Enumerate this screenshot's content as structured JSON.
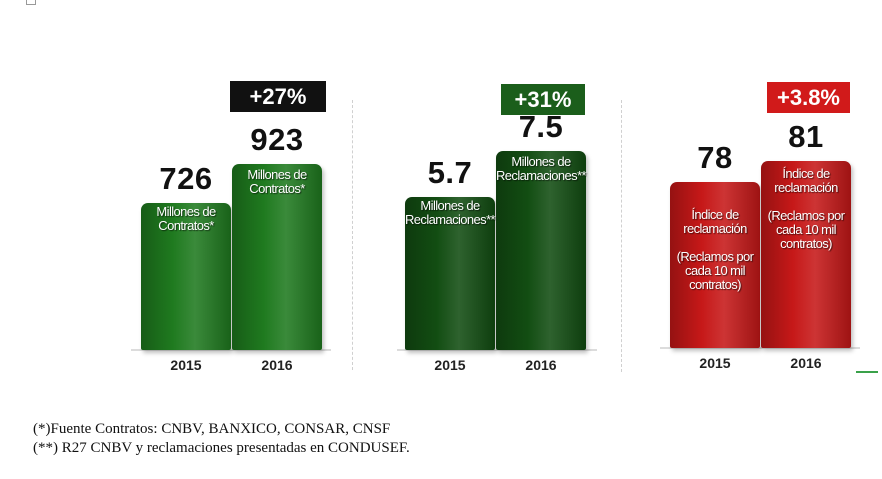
{
  "chart_data": [
    {
      "type": "bar",
      "categories": [
        "2015",
        "2016"
      ],
      "values": [
        726,
        923
      ],
      "value_labels": [
        "726",
        "923"
      ],
      "bar_labels": [
        "Millones de\nContratos*",
        "Millones de\nContratos*"
      ],
      "change": "+27%",
      "colors": {
        "bar": "#1f7a1f",
        "badge": "#111111"
      }
    },
    {
      "type": "bar",
      "categories": [
        "2015",
        "2016"
      ],
      "values": [
        5.7,
        7.5
      ],
      "value_labels": [
        "5.7",
        "7.5"
      ],
      "bar_labels": [
        "Millones de\nReclamaciones**",
        "Millones de\nReclamaciones**"
      ],
      "change": "+31%",
      "colors": {
        "bar": "#124d12",
        "badge": "#1b5e1b"
      }
    },
    {
      "type": "bar",
      "categories": [
        "2015",
        "2016"
      ],
      "values": [
        78,
        81
      ],
      "value_labels": [
        "78",
        "81"
      ],
      "bar_labels": [
        "Índice de\nreclamación\n\n(Reclamos por\ncada 10 mil\ncontratos)",
        "Índice de\nreclamación\n\n(Reclamos por\ncada 10 mil\ncontratos)"
      ],
      "change": "+3.8%",
      "colors": {
        "bar": "#c61818",
        "badge": "#d11a1a"
      }
    }
  ],
  "footnotes": [
    "(*)Fuente Contratos: CNBV, BANXICO, CONSAR, CNSF",
    "(**) R27 CNBV y reclamaciones presentadas en CONDUSEF."
  ]
}
